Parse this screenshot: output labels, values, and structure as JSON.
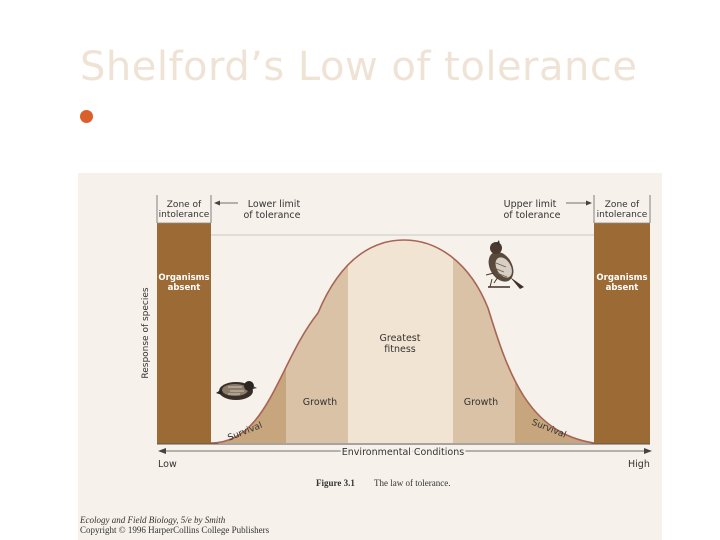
{
  "slide": {
    "title": "Shelford’s Low of tolerance",
    "bullet_color": "#d9602b"
  },
  "figure": {
    "zone_left_label": [
      "Zone of",
      "intolerance"
    ],
    "zone_right_label": [
      "Zone of",
      "intolerance"
    ],
    "lower_limit_label": [
      "Lower limit",
      "of tolerance"
    ],
    "upper_limit_label": [
      "Upper limit",
      "of tolerance"
    ],
    "organisms_left": [
      "Organisms",
      "absent"
    ],
    "organisms_right": [
      "Organisms",
      "absent"
    ],
    "y_axis_label": "Response of species",
    "x_axis_label": "Environmental Conditions",
    "x_low": "Low",
    "x_high": "High",
    "center_label": [
      "Greatest",
      "fitness"
    ],
    "growth_left": "Growth",
    "growth_right": "Growth",
    "survival_left": "Survival",
    "survival_right": "Survival",
    "caption_bold": "Figure 3.1",
    "caption_text": "The law of tolerance.",
    "credit_line1": "Ecology and Field Biology, 5/e by Smith",
    "credit_line2": "Copyright © 1996 HarperCollins College Publishers",
    "bird_icons": [
      "quail-icon",
      "songbird-icon"
    ],
    "colors": {
      "zone": "#9c6a34",
      "growth": "#d9c2a5",
      "survival": "#c8a67d",
      "fitness": "#f2e4d2",
      "curve": "#a86454"
    }
  }
}
